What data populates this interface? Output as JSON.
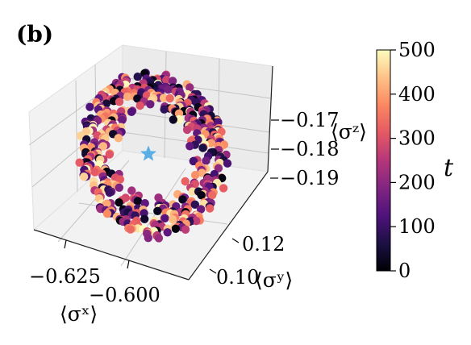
{
  "panel_label": "(b)",
  "axes": {
    "x": {
      "label": "⟨σˣ⟩",
      "ticks": [
        {
          "value": -0.625,
          "label": "−0.625"
        },
        {
          "value": -0.6,
          "label": "−0.600"
        }
      ]
    },
    "y": {
      "label": "⟨σʸ⟩",
      "ticks": [
        {
          "value": 0.1,
          "label": "0.10"
        },
        {
          "value": 0.12,
          "label": "0.12"
        }
      ]
    },
    "z": {
      "label": "⟨σᶻ⟩",
      "ticks": [
        {
          "value": -0.17,
          "label": "−0.17"
        },
        {
          "value": -0.18,
          "label": "−0.18"
        },
        {
          "value": -0.19,
          "label": "−0.19"
        }
      ]
    }
  },
  "colorbar": {
    "label": "t",
    "colormap": "magma",
    "range": [
      0,
      500
    ],
    "ticks": [
      {
        "value": 500,
        "label": "500"
      },
      {
        "value": 400,
        "label": "400"
      },
      {
        "value": 300,
        "label": "300"
      },
      {
        "value": 200,
        "label": "200"
      },
      {
        "value": 100,
        "label": "100"
      },
      {
        "value": 0,
        "label": "0"
      }
    ]
  },
  "colors": {
    "pane": "#f2f2f2",
    "grid": "#b8b8b8",
    "star": "#5aaee6",
    "magma_stops": [
      "#000004",
      "#1c1044",
      "#4f127b",
      "#812581",
      "#b5367a",
      "#e55964",
      "#fb8761",
      "#fec287",
      "#fcfdbf"
    ]
  },
  "chart_data": {
    "type": "scatter",
    "projection": "3d",
    "title": "",
    "xlabel": "⟨σˣ⟩",
    "ylabel": "⟨σʸ⟩",
    "zlabel": "⟨σᶻ⟩",
    "xlim": [
      -0.64,
      -0.585
    ],
    "ylim": [
      0.09,
      0.135
    ],
    "zlim": [
      -0.195,
      -0.165
    ],
    "grid": true,
    "color_variable": "t",
    "color_range": [
      0,
      500
    ],
    "n_points": 500,
    "trajectory_description": "Points scattered on a tilted ring/annulus around a central fixed point",
    "fixed_point": {
      "x": -0.612,
      "y": 0.112,
      "z": -0.18,
      "marker": "star",
      "color": "#5aaee6"
    }
  }
}
